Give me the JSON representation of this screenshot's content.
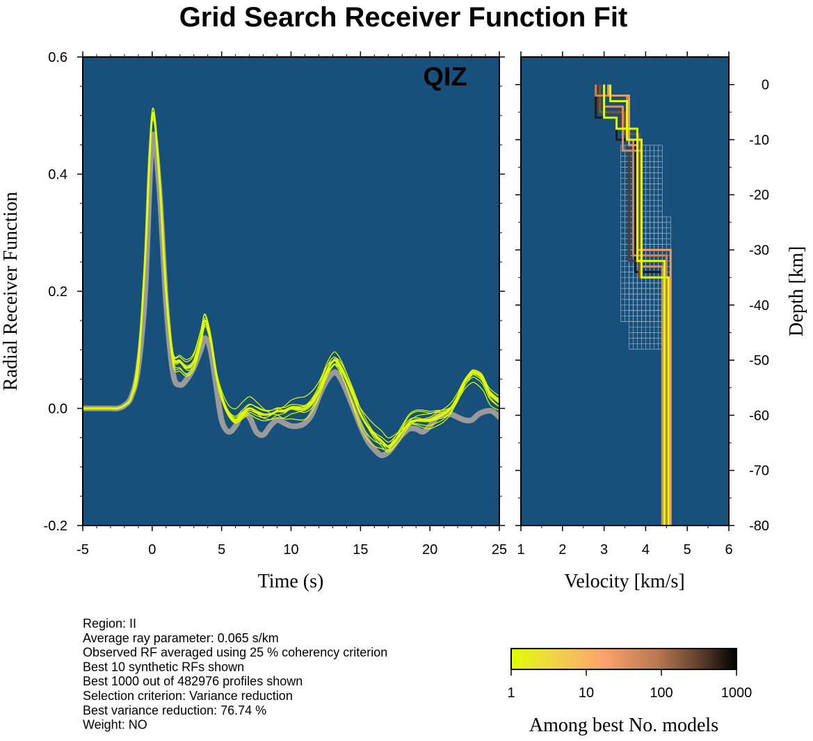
{
  "title": "Grid Search Receiver Function Fit",
  "station": "QIZ",
  "chart_data": [
    {
      "type": "line",
      "name": "receiver-function-panel",
      "xlabel": "Time (s)",
      "ylabel": "Radial Receiver Function",
      "xlim": [
        -5,
        25
      ],
      "ylim": [
        -0.2,
        0.6
      ],
      "xticks": [
        -5,
        0,
        5,
        10,
        15,
        20,
        25
      ],
      "yticks": [
        -0.2,
        0.0,
        0.2,
        0.4,
        0.6
      ],
      "xtick_labels": [
        "-5",
        "0",
        "5",
        "10",
        "15",
        "20",
        "25"
      ],
      "ytick_labels": [
        "-0.2",
        "0.0",
        "0.2",
        "0.4",
        "0.6"
      ],
      "background": "#17507a",
      "series": [
        {
          "role": "observed",
          "color": "#9a9a9a",
          "x": [
            -5,
            -3,
            -2.5,
            -2,
            -1.5,
            -1,
            -0.5,
            0,
            0.5,
            1,
            1.5,
            2,
            2.5,
            3,
            3.5,
            3.8,
            4.2,
            4.6,
            5,
            5.5,
            6,
            6.5,
            7,
            7.5,
            8,
            8.5,
            9,
            9.5,
            10,
            10.5,
            11,
            11.5,
            12,
            12.5,
            13,
            13.3,
            13.8,
            14.5,
            15,
            15.5,
            16,
            16.5,
            17,
            17.5,
            18,
            18.5,
            19,
            19.5,
            20,
            20.5,
            21,
            21.5,
            22,
            22.5,
            23,
            23.5,
            24,
            24.5,
            25
          ],
          "y": [
            0.0,
            0.0,
            0.0,
            0.005,
            0.02,
            0.07,
            0.2,
            0.46,
            0.38,
            0.18,
            0.06,
            0.04,
            0.05,
            0.07,
            0.1,
            0.12,
            0.1,
            0.04,
            -0.02,
            -0.04,
            -0.03,
            -0.01,
            -0.015,
            -0.04,
            -0.045,
            -0.03,
            -0.02,
            -0.025,
            -0.03,
            -0.03,
            -0.025,
            -0.01,
            0.02,
            0.045,
            0.06,
            0.06,
            0.04,
            0.0,
            -0.03,
            -0.055,
            -0.07,
            -0.08,
            -0.075,
            -0.06,
            -0.045,
            -0.035,
            -0.035,
            -0.04,
            -0.03,
            -0.015,
            -0.01,
            -0.01,
            -0.015,
            -0.02,
            -0.02,
            -0.01,
            -0.005,
            -0.005,
            -0.015
          ]
        },
        {
          "role": "synthetic",
          "color": "#dfff00",
          "x": [
            -5,
            -3,
            -2.5,
            -2,
            -1.5,
            -1,
            -0.5,
            0,
            0.5,
            1,
            1.5,
            2,
            2.5,
            3,
            3.5,
            3.8,
            4.2,
            4.6,
            5,
            5.5,
            6,
            6.5,
            7,
            7.5,
            8,
            8.5,
            9,
            9.5,
            10,
            10.5,
            11,
            11.5,
            12,
            12.5,
            13,
            13.3,
            13.8,
            14.5,
            15,
            15.5,
            16,
            16.5,
            17,
            17.5,
            18,
            18.5,
            19,
            19.5,
            20,
            20.5,
            21,
            21.5,
            22,
            22.5,
            23,
            23.3,
            23.8,
            24.3,
            25
          ],
          "y": [
            0.0,
            0.0,
            0.0,
            0.005,
            0.02,
            0.08,
            0.26,
            0.5,
            0.4,
            0.2,
            0.09,
            0.08,
            0.07,
            0.08,
            0.12,
            0.15,
            0.12,
            0.06,
            0.02,
            -0.01,
            -0.02,
            -0.01,
            0.0,
            -0.005,
            -0.01,
            -0.01,
            -0.005,
            -0.005,
            0.0,
            0.0,
            0.0,
            0.01,
            0.03,
            0.06,
            0.08,
            0.08,
            0.06,
            0.02,
            -0.01,
            -0.03,
            -0.045,
            -0.055,
            -0.065,
            -0.055,
            -0.04,
            -0.025,
            -0.02,
            -0.02,
            -0.02,
            -0.015,
            -0.01,
            0.0,
            0.02,
            0.045,
            0.06,
            0.06,
            0.05,
            0.025,
            0.01
          ]
        }
      ]
    },
    {
      "type": "line",
      "name": "velocity-depth-panel",
      "xlabel": "Velocity [km/s]",
      "ylabel": "Depth [km]",
      "xlim": [
        1,
        6
      ],
      "ylim": [
        -80,
        5
      ],
      "xticks": [
        1,
        2,
        3,
        4,
        5,
        6
      ],
      "yticks": [
        0,
        -10,
        -20,
        -30,
        -40,
        -50,
        -60,
        -70,
        -80
      ],
      "xtick_labels": [
        "1",
        "2",
        "3",
        "4",
        "5",
        "6"
      ],
      "ytick_labels": [
        "0",
        "-10",
        "-20",
        "-30",
        "-40",
        "-50",
        "-60",
        "-70",
        "-80"
      ],
      "background": "#17507a",
      "grid_regions": [
        {
          "vmin": 3.4,
          "vmax": 4.4,
          "dmax": -11,
          "dmin": -43
        },
        {
          "vmin": 3.6,
          "vmax": 4.6,
          "dmax": -24,
          "dmin": -48
        }
      ],
      "profiles": [
        {
          "color": "#1b1b1b",
          "v": [
            2.8,
            3.3,
            3.75,
            4.5
          ],
          "d": [
            -6,
            -10,
            -34,
            -80
          ]
        },
        {
          "color": "#5a3a2a",
          "v": [
            2.85,
            3.4,
            3.6,
            4.45
          ],
          "d": [
            -4,
            -8,
            -32,
            -80
          ]
        },
        {
          "color": "#7a5535",
          "v": [
            2.9,
            3.5,
            3.85,
            4.55
          ],
          "d": [
            -5,
            -9,
            -35,
            -80
          ]
        },
        {
          "color": "#c8875a",
          "v": [
            2.8,
            3.55,
            3.7,
            4.5
          ],
          "d": [
            -2,
            -10,
            -31,
            -80
          ]
        },
        {
          "color": "#d88e63",
          "v": [
            3.0,
            3.45,
            3.9,
            4.4
          ],
          "d": [
            -4,
            -12,
            -33,
            -80
          ]
        },
        {
          "color": "#e49a6a",
          "v": [
            3.1,
            3.6,
            3.8,
            4.6
          ],
          "d": [
            -2,
            -11,
            -30,
            -80
          ]
        },
        {
          "color": "#dfff00",
          "v": [
            3.0,
            3.3,
            3.8,
            4.45
          ],
          "d": [
            -6,
            -8,
            -32,
            -80
          ]
        },
        {
          "color": "#dfff00",
          "v": [
            3.15,
            3.55,
            3.9,
            4.55
          ],
          "d": [
            -3,
            -10,
            -35,
            -80
          ]
        }
      ]
    },
    {
      "type": "colorbar",
      "name": "rank-colorbar",
      "xlabel": "Among best No. models",
      "scale": "log",
      "range": [
        1,
        1000
      ],
      "tick_values": [
        1,
        10,
        100,
        1000
      ],
      "tick_labels": [
        "1",
        "10",
        "100",
        "1000"
      ],
      "stops": [
        "#dfff00",
        "#f2d24a",
        "#ffa56c",
        "#b87850",
        "#5a3a2a",
        "#000000"
      ]
    }
  ],
  "notes": [
    "Region: II",
    "Average ray parameter: 0.065 s/km",
    "Observed RF averaged using 25 % coherency criterion",
    "Best 10 synthetic RFs shown",
    "Best 1000 out of 482976 profiles shown",
    "Selection criterion: Variance reduction",
    "Best variance reduction: 76.74 %",
    "Weight: NO"
  ]
}
